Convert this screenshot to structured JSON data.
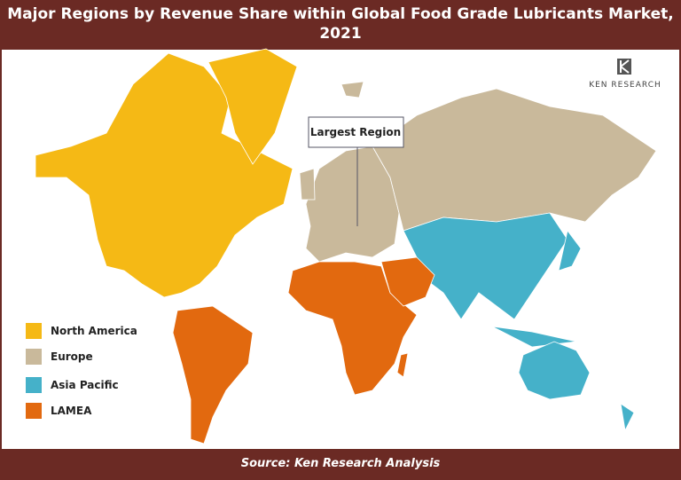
{
  "header": {
    "title": "Major Regions by Revenue Share within Global Food Grade Lubricants Market, 2021"
  },
  "logo": {
    "text": "KEN RESEARCH"
  },
  "annotation": {
    "label": "Largest Region"
  },
  "legend": {
    "items": [
      {
        "label": "North America",
        "color": "#f5b915"
      },
      {
        "label": "Europe",
        "color": "#c9b99b"
      },
      {
        "label": "Asia Pacific",
        "color": "#45b1c9"
      },
      {
        "label": "LAMEA",
        "color": "#e2690f"
      }
    ]
  },
  "footer": {
    "source": "Source: Ken Research Analysis"
  }
}
